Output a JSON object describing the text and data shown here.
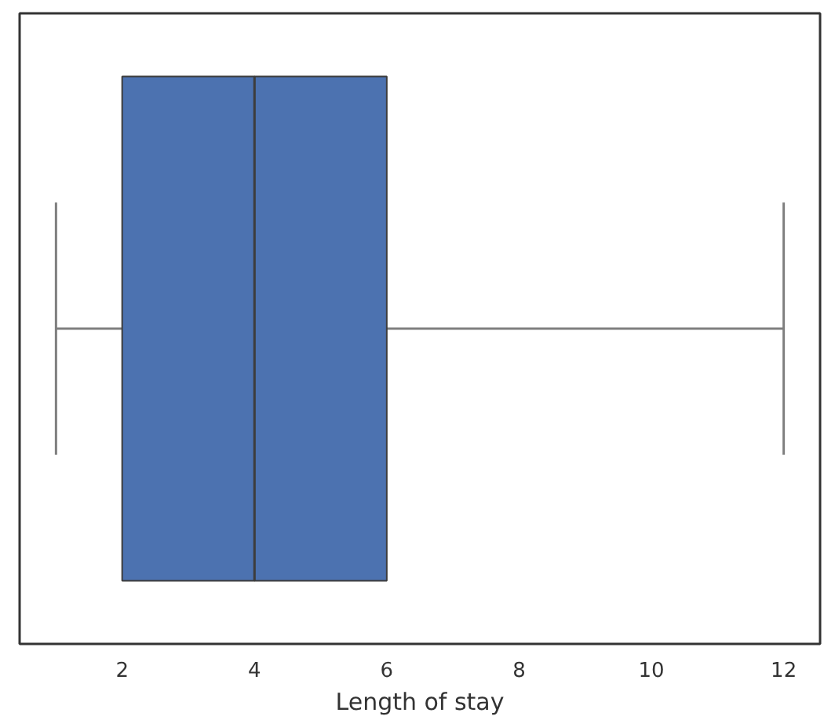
{
  "chart_data": {
    "type": "box",
    "orientation": "horizontal",
    "xlabel": "Length of stay",
    "categories": [
      null
    ],
    "series": [
      {
        "color": "#4c72b0",
        "boxes": [
          {
            "low": 1,
            "q1": 2,
            "median": 4,
            "q3": 6,
            "high": 12
          }
        ]
      }
    ],
    "xlim": [
      0.45,
      12.55
    ],
    "xticks": [
      2,
      4,
      6,
      8,
      10,
      12
    ],
    "tick_labels": "x"
  }
}
